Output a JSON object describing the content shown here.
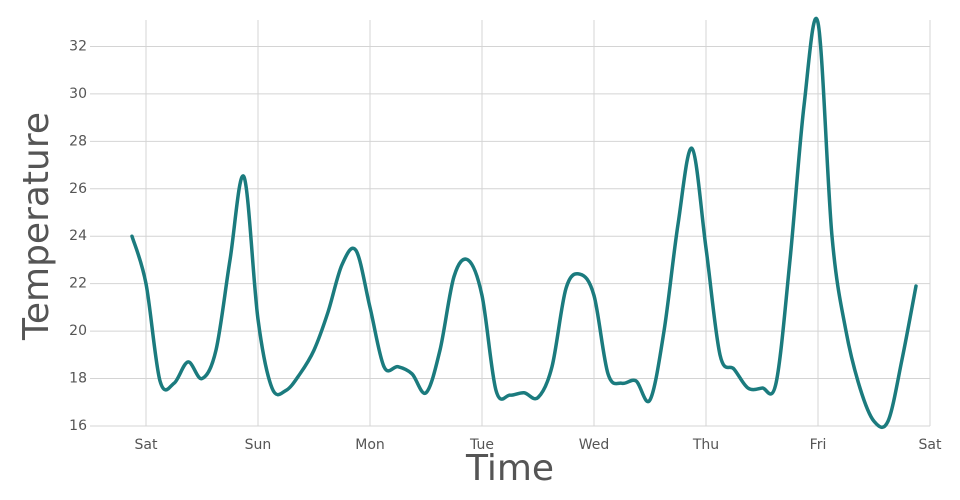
{
  "chart_data": {
    "type": "line",
    "x_label": "Time",
    "y_label": "Temperature",
    "categories": [
      null,
      "Sat",
      null,
      null,
      null,
      null,
      null,
      null,
      null,
      "Sun",
      null,
      null,
      null,
      null,
      null,
      null,
      null,
      "Mon",
      null,
      null,
      null,
      null,
      null,
      null,
      null,
      "Tue",
      null,
      null,
      null,
      null,
      null,
      null,
      null,
      "Wed",
      null,
      null,
      null,
      null,
      null,
      null,
      null,
      "Thu",
      null,
      null,
      null,
      null,
      null,
      null,
      null,
      "Fri",
      null,
      null,
      null,
      null,
      null,
      null,
      null,
      "Sat"
    ],
    "series": [
      {
        "name": "Temperature",
        "color": "#1b7b7e",
        "values": [
          24.0,
          22.0,
          17.9,
          17.8,
          18.7,
          18.0,
          19.2,
          23.0,
          26.5,
          20.5,
          17.6,
          17.5,
          18.2,
          19.2,
          20.8,
          22.8,
          23.4,
          21.0,
          18.5,
          18.5,
          18.2,
          17.4,
          19.2,
          22.3,
          23.0,
          21.5,
          17.5,
          17.3,
          17.4,
          17.2,
          18.5,
          21.8,
          22.4,
          21.5,
          18.2,
          17.8,
          17.9,
          17.1,
          20.0,
          24.5,
          27.7,
          23.5,
          19.0,
          18.4,
          17.6,
          17.6,
          17.8,
          23.0,
          29.5,
          33.0,
          24.0,
          20.0,
          17.6,
          16.2,
          16.2,
          18.8,
          21.9,
          null
        ]
      }
    ],
    "ylim": [
      16,
      33.2
    ],
    "yticks": [
      16,
      18,
      20,
      22,
      24,
      26,
      28,
      30,
      32
    ],
    "grid": true
  }
}
